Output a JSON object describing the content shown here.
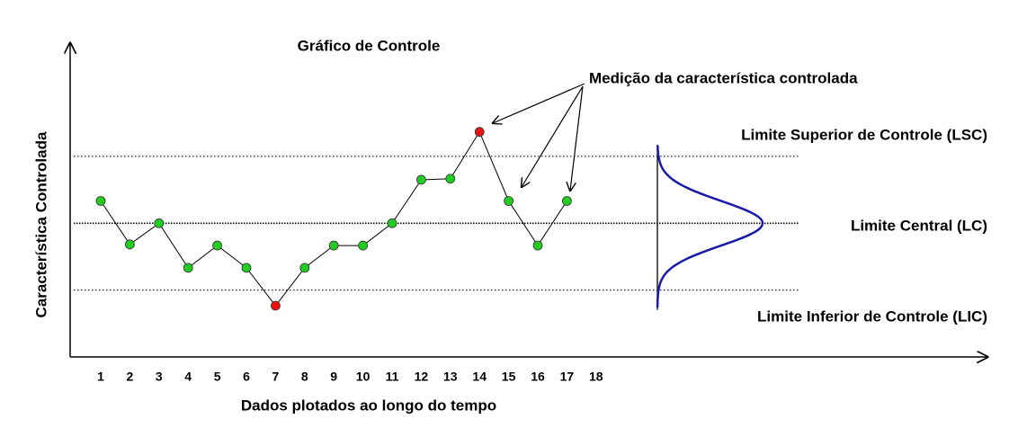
{
  "chart_data": {
    "type": "line",
    "title": "Gráfico de Controle",
    "x_label": "Dados plotados ao longo do tempo",
    "y_label": "Característica Controlada",
    "annotation": "Medição da característica controlada",
    "categories": [
      "1",
      "2",
      "3",
      "4",
      "5",
      "6",
      "7",
      "8",
      "9",
      "10",
      "11",
      "12",
      "13",
      "14",
      "15",
      "16",
      "17",
      "18"
    ],
    "values": [
      1.0,
      -0.95,
      0,
      -2.0,
      -1.0,
      -2.0,
      -3.7,
      -2.0,
      -1.0,
      -1.0,
      0,
      1.95,
      2.0,
      4.1,
      1.0,
      -1.0,
      1.0,
      null
    ],
    "point_colors": [
      "#22cc22",
      "#22cc22",
      "#22cc22",
      "#22cc22",
      "#22cc22",
      "#22cc22",
      "#ee1111",
      "#22cc22",
      "#22cc22",
      "#22cc22",
      "#22cc22",
      "#22cc22",
      "#22cc22",
      "#ee1111",
      "#22cc22",
      "#22cc22",
      "#22cc22",
      "#22cc22"
    ],
    "line_color": "#000000",
    "ylim": [
      -6,
      8
    ],
    "limits": [
      {
        "label": "Limite Superior de Controle (LSC)",
        "value": 3
      },
      {
        "label": "Limite Central (LC)",
        "value": 0
      },
      {
        "label": "Limite Inferior de Controle (LIC)",
        "value": -3
      }
    ],
    "distribution_color": "#1a1aa8"
  }
}
